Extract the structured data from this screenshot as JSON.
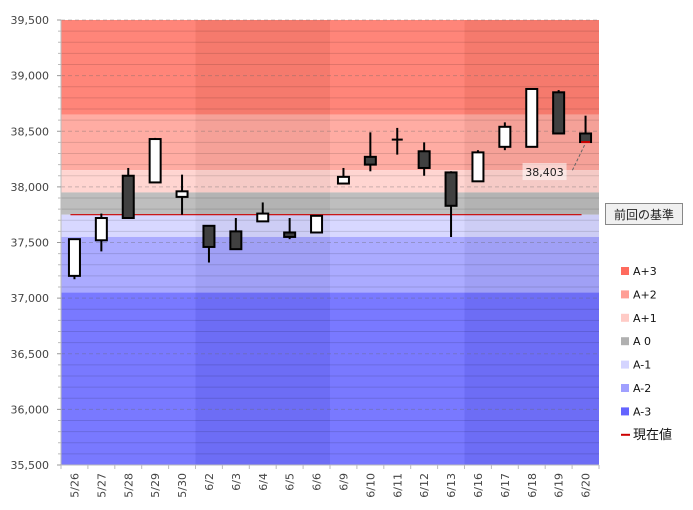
{
  "chart_data": {
    "type": "candlestick",
    "title": "",
    "xlabel": "",
    "ylabel": "",
    "ylim": [
      35500,
      39500
    ],
    "yticks": [
      35500,
      36000,
      36500,
      37000,
      37500,
      38000,
      38500,
      39000,
      39500
    ],
    "ytick_labels": [
      "35,500",
      "36,000",
      "36,500",
      "37,000",
      "37,500",
      "38,000",
      "38,500",
      "39,000",
      "39,500"
    ],
    "minor_grid_step": 100,
    "categories": [
      "5/26",
      "5/27",
      "5/28",
      "5/29",
      "5/30",
      "6/2",
      "6/3",
      "6/4",
      "6/5",
      "6/6",
      "6/9",
      "6/10",
      "6/11",
      "6/12",
      "6/13",
      "6/16",
      "6/17",
      "6/18",
      "6/19",
      "6/20"
    ],
    "week_groups": [
      [
        0,
        4
      ],
      [
        5,
        9
      ],
      [
        10,
        14
      ],
      [
        15,
        19
      ]
    ],
    "candles": [
      {
        "date": "5/26",
        "open": 37200,
        "high": 37530,
        "low": 37170,
        "close": 37530
      },
      {
        "date": "5/27",
        "open": 37520,
        "high": 37760,
        "low": 37420,
        "close": 37720
      },
      {
        "date": "5/28",
        "open": 38100,
        "high": 38170,
        "low": 37720,
        "close": 37720
      },
      {
        "date": "5/29",
        "open": 38040,
        "high": 38440,
        "low": 38040,
        "close": 38430
      },
      {
        "date": "5/30",
        "open": 37910,
        "high": 38110,
        "low": 37750,
        "close": 37960
      },
      {
        "date": "6/2",
        "open": 37650,
        "high": 37650,
        "low": 37320,
        "close": 37460
      },
      {
        "date": "6/3",
        "open": 37600,
        "high": 37720,
        "low": 37440,
        "close": 37440
      },
      {
        "date": "6/4",
        "open": 37690,
        "high": 37860,
        "low": 37690,
        "close": 37760
      },
      {
        "date": "6/5",
        "open": 37590,
        "high": 37720,
        "low": 37530,
        "close": 37550
      },
      {
        "date": "6/6",
        "open": 37590,
        "high": 37740,
        "low": 37590,
        "close": 37740
      },
      {
        "date": "6/9",
        "open": 38030,
        "high": 38170,
        "low": 38030,
        "close": 38090
      },
      {
        "date": "6/10",
        "open": 38270,
        "high": 38490,
        "low": 38140,
        "close": 38200
      },
      {
        "date": "6/11",
        "open": 38420,
        "high": 38530,
        "low": 38290,
        "close": 38425
      },
      {
        "date": "6/12",
        "open": 38320,
        "high": 38400,
        "low": 38100,
        "close": 38170
      },
      {
        "date": "6/13",
        "open": 38130,
        "high": 38140,
        "low": 37550,
        "close": 37830
      },
      {
        "date": "6/16",
        "open": 38050,
        "high": 38330,
        "low": 38050,
        "close": 38310
      },
      {
        "date": "6/17",
        "open": 38360,
        "high": 38580,
        "low": 38330,
        "close": 38540
      },
      {
        "date": "6/18",
        "open": 38360,
        "high": 38880,
        "low": 38360,
        "close": 38880
      },
      {
        "date": "6/19",
        "open": 38850,
        "high": 38870,
        "low": 38480,
        "close": 38480
      },
      {
        "date": "6/20",
        "open": 38480,
        "high": 38640,
        "low": 38403,
        "close": 38403
      }
    ],
    "bands": [
      {
        "name": "A+3",
        "from": 38650,
        "to": 39500,
        "color": "#ff7f72"
      },
      {
        "name": "A+2",
        "from": 38150,
        "to": 38650,
        "color": "#ffa89f"
      },
      {
        "name": "A+1",
        "from": 37950,
        "to": 38150,
        "color": "#ffd3cf"
      },
      {
        "name": "A 0",
        "from": 37750,
        "to": 37950,
        "color": "#bbbbbb"
      },
      {
        "name": "A-1",
        "from": 37550,
        "to": 37750,
        "color": "#d6d6ff"
      },
      {
        "name": "A-2",
        "from": 37050,
        "to": 37550,
        "color": "#a7a7ff"
      },
      {
        "name": "A-3",
        "from": 35500,
        "to": 37050,
        "color": "#7272ff"
      }
    ],
    "current_line": {
      "name": "現在値",
      "value": 37750,
      "color": "#cc0000",
      "from_index": 0,
      "to_index": 19
    },
    "last_value_label": "38,403",
    "last_value": 38403,
    "legend": {
      "placement": "right",
      "items": [
        {
          "label": "A+3",
          "color": "#ff6b5e",
          "kind": "box"
        },
        {
          "label": "A+2",
          "color": "#ff9e95",
          "kind": "box"
        },
        {
          "label": "A+1",
          "color": "#ffcbc6",
          "kind": "box"
        },
        {
          "label": "A 0",
          "color": "#b0b0b0",
          "kind": "box"
        },
        {
          "label": "A-1",
          "color": "#d4d4ff",
          "kind": "box"
        },
        {
          "label": "A-2",
          "color": "#a0a0ff",
          "kind": "box"
        },
        {
          "label": "A-3",
          "color": "#6464ff",
          "kind": "box"
        },
        {
          "label": "現在値",
          "color": "#cc0000",
          "kind": "line"
        }
      ]
    },
    "colors": {
      "up_fill": "#ffffff",
      "down_fill": "#404040",
      "candle_stroke": "#000000"
    }
  },
  "controls": {
    "reference_button_label": "前回の基準"
  }
}
